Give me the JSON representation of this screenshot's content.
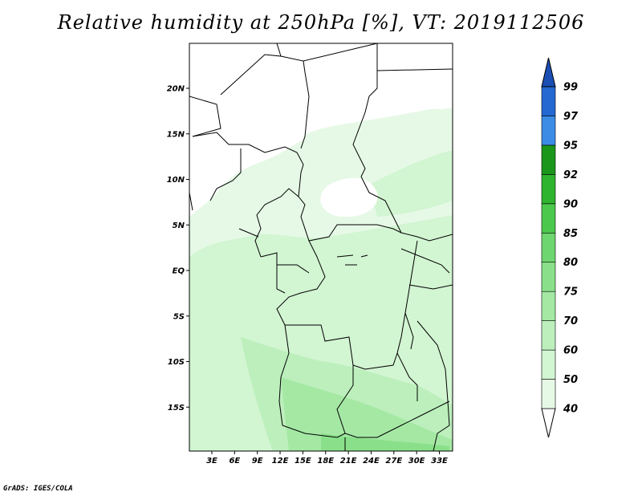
{
  "title": "Relative humidity at 250hPa [%], VT: 2019112506",
  "credit": "GrADS: IGES/COLA",
  "map": {
    "lat_labels": [
      {
        "label": "20N",
        "lat": 20
      },
      {
        "label": "15N",
        "lat": 15
      },
      {
        "label": "10N",
        "lat": 10
      },
      {
        "label": "5N",
        "lat": 5
      },
      {
        "label": "EQ",
        "lat": 0
      },
      {
        "label": "5S",
        "lat": -5
      },
      {
        "label": "10S",
        "lat": -10
      },
      {
        "label": "15S",
        "lat": -15
      }
    ],
    "lon_labels": [
      {
        "label": "3E",
        "lon": 3
      },
      {
        "label": "6E",
        "lon": 6
      },
      {
        "label": "9E",
        "lon": 9
      },
      {
        "label": "12E",
        "lon": 12
      },
      {
        "label": "15E",
        "lon": 15
      },
      {
        "label": "18E",
        "lon": 18
      },
      {
        "label": "21E",
        "lon": 21
      },
      {
        "label": "24E",
        "lon": 24
      },
      {
        "label": "27E",
        "lon": 27
      },
      {
        "label": "30E",
        "lon": 30
      },
      {
        "label": "33E",
        "lon": 33
      }
    ]
  },
  "colorbar": {
    "levels": [
      "40",
      "50",
      "60",
      "70",
      "75",
      "80",
      "85",
      "90",
      "92",
      "95",
      "97",
      "99"
    ],
    "colors": [
      "#ffffff",
      "#e6f9e6",
      "#d2f5d2",
      "#bcefbc",
      "#a4e8a4",
      "#8ae08a",
      "#6ed66e",
      "#4cc84c",
      "#2eb42e",
      "#1a961a",
      "#3c8ce6",
      "#2468d2",
      "#1c4fb4"
    ]
  }
}
